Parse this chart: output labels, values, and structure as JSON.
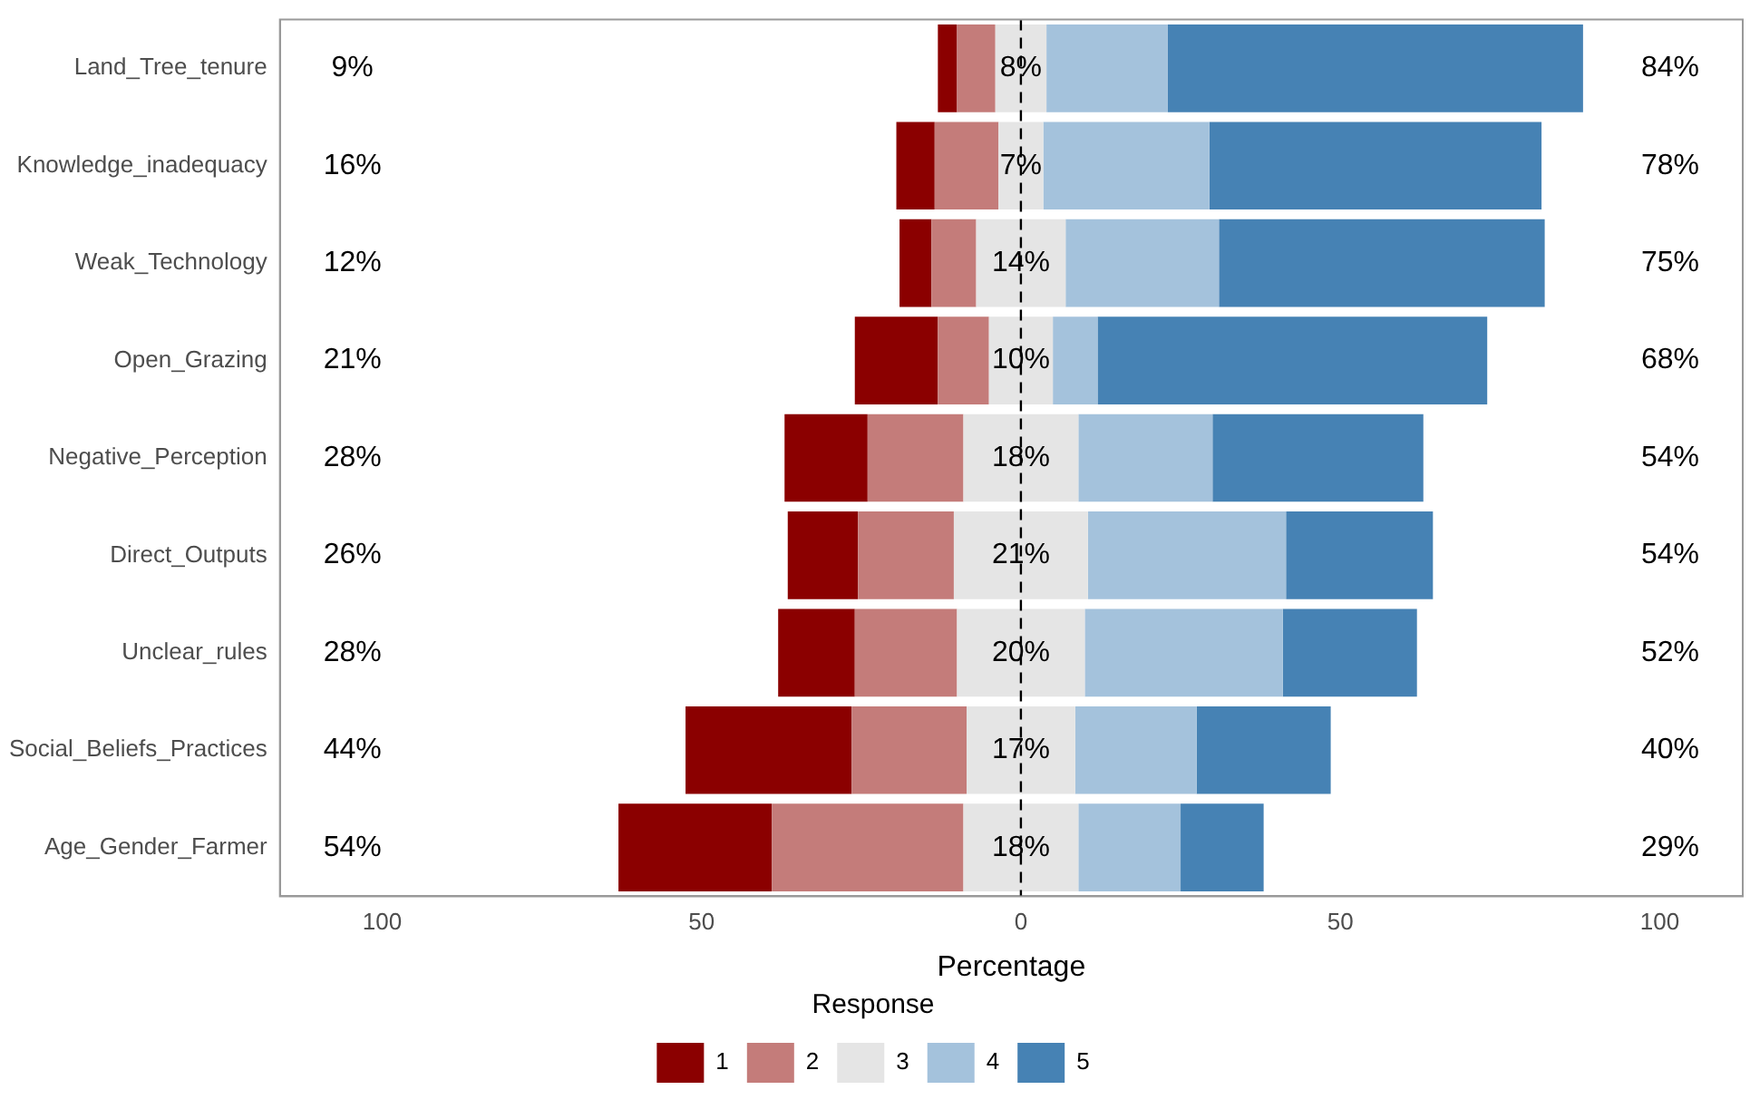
{
  "chart_data": {
    "type": "bar",
    "orientation": "horizontal",
    "stacked": true,
    "xlabel": "Percentage",
    "legend_title": "Response",
    "legend": "bottom",
    "grid": false,
    "categories": [
      "Land_Tree_tenure",
      "Knowledge_inadequacy",
      "Weak_Technology",
      "Open_Grazing",
      "Negative_Perception",
      "Direct_Outputs",
      "Unclear_rules",
      "Social_Beliefs_Practices",
      "Age_Gender_Farmer"
    ],
    "series": [
      {
        "color": "#e5e5e5",
        "values": [
          -4,
          -3.5,
          -7,
          -5,
          -9,
          -10.5,
          -10,
          -8.5,
          -9
        ]
      },
      {
        "name": "2",
        "color": "#c47c7a",
        "values": [
          -6,
          -10,
          -7,
          -8,
          -15,
          -15,
          -16,
          -18,
          -30
        ]
      },
      {
        "name": "1",
        "color": "#8b0000",
        "values": [
          -3,
          -6,
          -5,
          -13,
          -13,
          -11,
          -12,
          -26,
          -24
        ]
      },
      {
        "name": "3",
        "color": "#e5e5e5",
        "values": [
          4,
          3.5,
          7,
          5,
          9,
          10.5,
          10,
          8.5,
          9
        ]
      },
      {
        "name": "4",
        "color": "#a4c2dc",
        "values": [
          19,
          26,
          24,
          7,
          21,
          31,
          31,
          19,
          16
        ]
      },
      {
        "name": "5",
        "color": "#4682b4",
        "values": [
          65,
          52,
          51,
          61,
          33,
          23,
          21,
          21,
          13
        ]
      }
    ],
    "xlim": [
      -116,
      113
    ],
    "xticks": [
      {
        "value": -100,
        "label": "100"
      },
      {
        "value": -50,
        "label": "50"
      },
      0,
      50,
      100
    ],
    "ref_lines": [
      {
        "axis": "x",
        "value": 0,
        "color": "#000000",
        "line_style": "dashed"
      }
    ],
    "annotations": [
      "9%",
      "8%",
      "84%",
      "16%",
      "7%",
      "78%",
      "12%",
      "14%",
      "75%",
      "21%",
      "10%",
      "68%",
      "28%",
      "18%",
      "54%",
      "26%",
      "21%",
      "54%",
      "28%",
      "20%",
      "52%",
      "44%",
      "17%",
      "40%",
      "54%",
      "18%",
      "29%"
    ]
  }
}
